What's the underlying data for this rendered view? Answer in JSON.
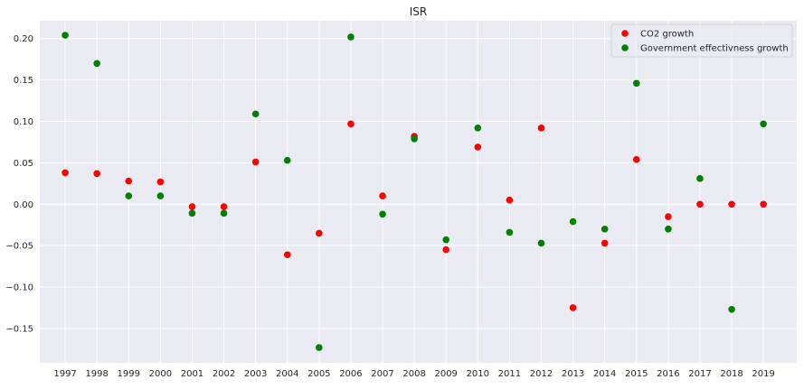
{
  "chart_data": {
    "type": "scatter",
    "title": "ISR",
    "xlabel": "",
    "ylabel": "",
    "x": [
      1997,
      1998,
      1999,
      2000,
      2001,
      2002,
      2003,
      2004,
      2005,
      2006,
      2007,
      2008,
      2009,
      2010,
      2011,
      2012,
      2013,
      2014,
      2015,
      2016,
      2017,
      2018,
      2019
    ],
    "x_tick_labels": [
      "1997",
      "1998",
      "1999",
      "2000",
      "2001",
      "2002",
      "2003",
      "2004",
      "2005",
      "2006",
      "2007",
      "2008",
      "2009",
      "2010",
      "2011",
      "2012",
      "2013",
      "2014",
      "2015",
      "2016",
      "2017",
      "2018",
      "2019"
    ],
    "y_ticks": [
      -0.15,
      -0.1,
      -0.05,
      0.0,
      0.05,
      0.1,
      0.15,
      0.2
    ],
    "y_tick_labels": [
      "−0.15",
      "−0.10",
      "−0.05",
      "0.00",
      "0.05",
      "0.10",
      "0.15",
      "0.20"
    ],
    "xlim": [
      1996.2,
      2020.05
    ],
    "ylim": [
      -0.1915,
      0.2215
    ],
    "grid": true,
    "legend_position": "top-right",
    "background_color": "#eaeaf2",
    "grid_color": "#ffffff",
    "series": [
      {
        "name": "CO2 growth",
        "color": "#ff0000",
        "values": [
          0.038,
          0.037,
          0.028,
          0.027,
          -0.003,
          -0.003,
          0.051,
          -0.061,
          -0.035,
          0.097,
          0.01,
          0.082,
          -0.055,
          0.069,
          0.005,
          0.092,
          -0.125,
          -0.047,
          0.054,
          -0.015,
          0.0,
          0.0,
          0.0
        ]
      },
      {
        "name": "Government effectivness growth",
        "color": "#008000",
        "values": [
          0.204,
          0.17,
          0.01,
          0.01,
          -0.011,
          -0.011,
          0.109,
          0.053,
          -0.173,
          0.202,
          -0.012,
          0.079,
          -0.043,
          0.092,
          -0.034,
          -0.047,
          -0.021,
          -0.03,
          0.146,
          -0.03,
          0.031,
          -0.127,
          0.097
        ]
      }
    ]
  }
}
